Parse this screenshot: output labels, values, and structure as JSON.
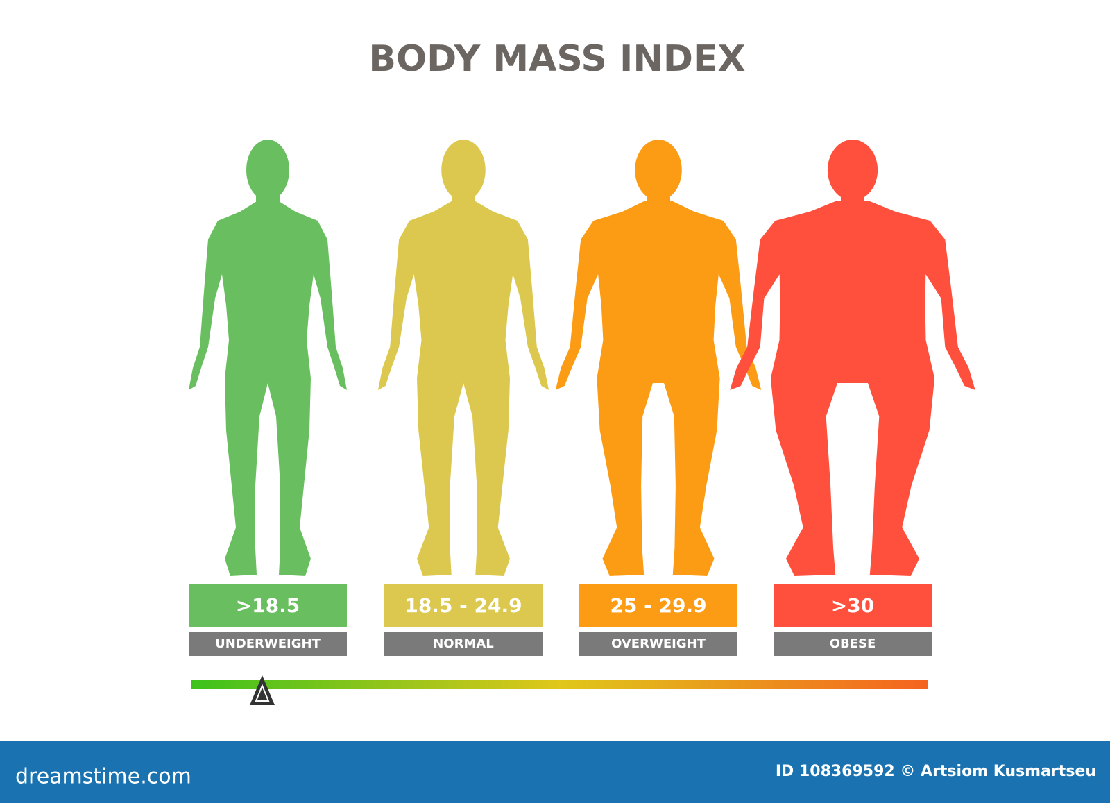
{
  "title": "BODY MASS INDEX",
  "categories": [
    {
      "range": ">18.5",
      "label": "UNDERWEIGHT",
      "color": "#69bf5f"
    },
    {
      "range": "18.5 - 24.9",
      "label": "NORMAL",
      "color": "#dcc84e"
    },
    {
      "range": "25 - 29.9",
      "label": "OVERWEIGHT",
      "color": "#fb9c14"
    },
    {
      "range": ">30",
      "label": "OBESE",
      "color": "#fe503c"
    }
  ],
  "scale_colors": [
    "#3cc21c",
    "#e0c71a",
    "#f5631f"
  ],
  "footer": {
    "site": "dreamstime.com",
    "credit": "ID 108369592 © Artsiom Kusmartseu"
  }
}
